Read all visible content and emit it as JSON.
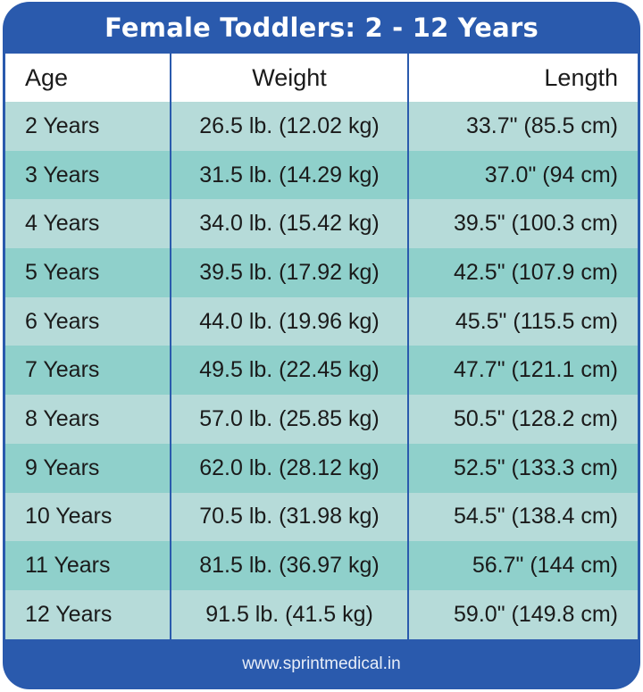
{
  "title": "Female Toddlers: 2 - 12 Years",
  "headers": [
    "Age",
    "Weight",
    "Length"
  ],
  "rows": [
    [
      "2 Years",
      "26.5 lb. (12.02 kg)",
      "33.7\" (85.5 cm)"
    ],
    [
      "3 Years",
      "31.5 lb. (14.29 kg)",
      "37.0\" (94 cm)"
    ],
    [
      "4 Years",
      "34.0 lb. (15.42 kg)",
      "39.5\" (100.3 cm)"
    ],
    [
      "5 Years",
      "39.5 lb. (17.92 kg)",
      "42.5\" (107.9 cm)"
    ],
    [
      "6 Years",
      "44.0 lb. (19.96 kg)",
      "45.5\" (115.5 cm)"
    ],
    [
      "7 Years",
      "49.5 lb. (22.45 kg)",
      "47.7\" (121.1 cm)"
    ],
    [
      "8 Years",
      "57.0 lb. (25.85 kg)",
      "50.5\" (128.2 cm)"
    ],
    [
      "9 Years",
      "62.0 lb. (28.12 kg)",
      "52.5\" (133.3 cm)"
    ],
    [
      "10 Years",
      "70.5 lb. (31.98 kg)",
      "54.5\" (138.4 cm)"
    ],
    [
      "11 Years",
      "81.5 lb. (36.97 kg)",
      "56.7\" (144 cm)"
    ],
    [
      "12 Years",
      "91.5 lb. (41.5 kg)",
      "59.0\" (149.8 cm)"
    ]
  ],
  "footer": "www.sprintmedical.in",
  "colors": {
    "brand_blue": "#2a5aad",
    "row_light": "#b6dbd9",
    "row_dark": "#8fd0cb"
  }
}
